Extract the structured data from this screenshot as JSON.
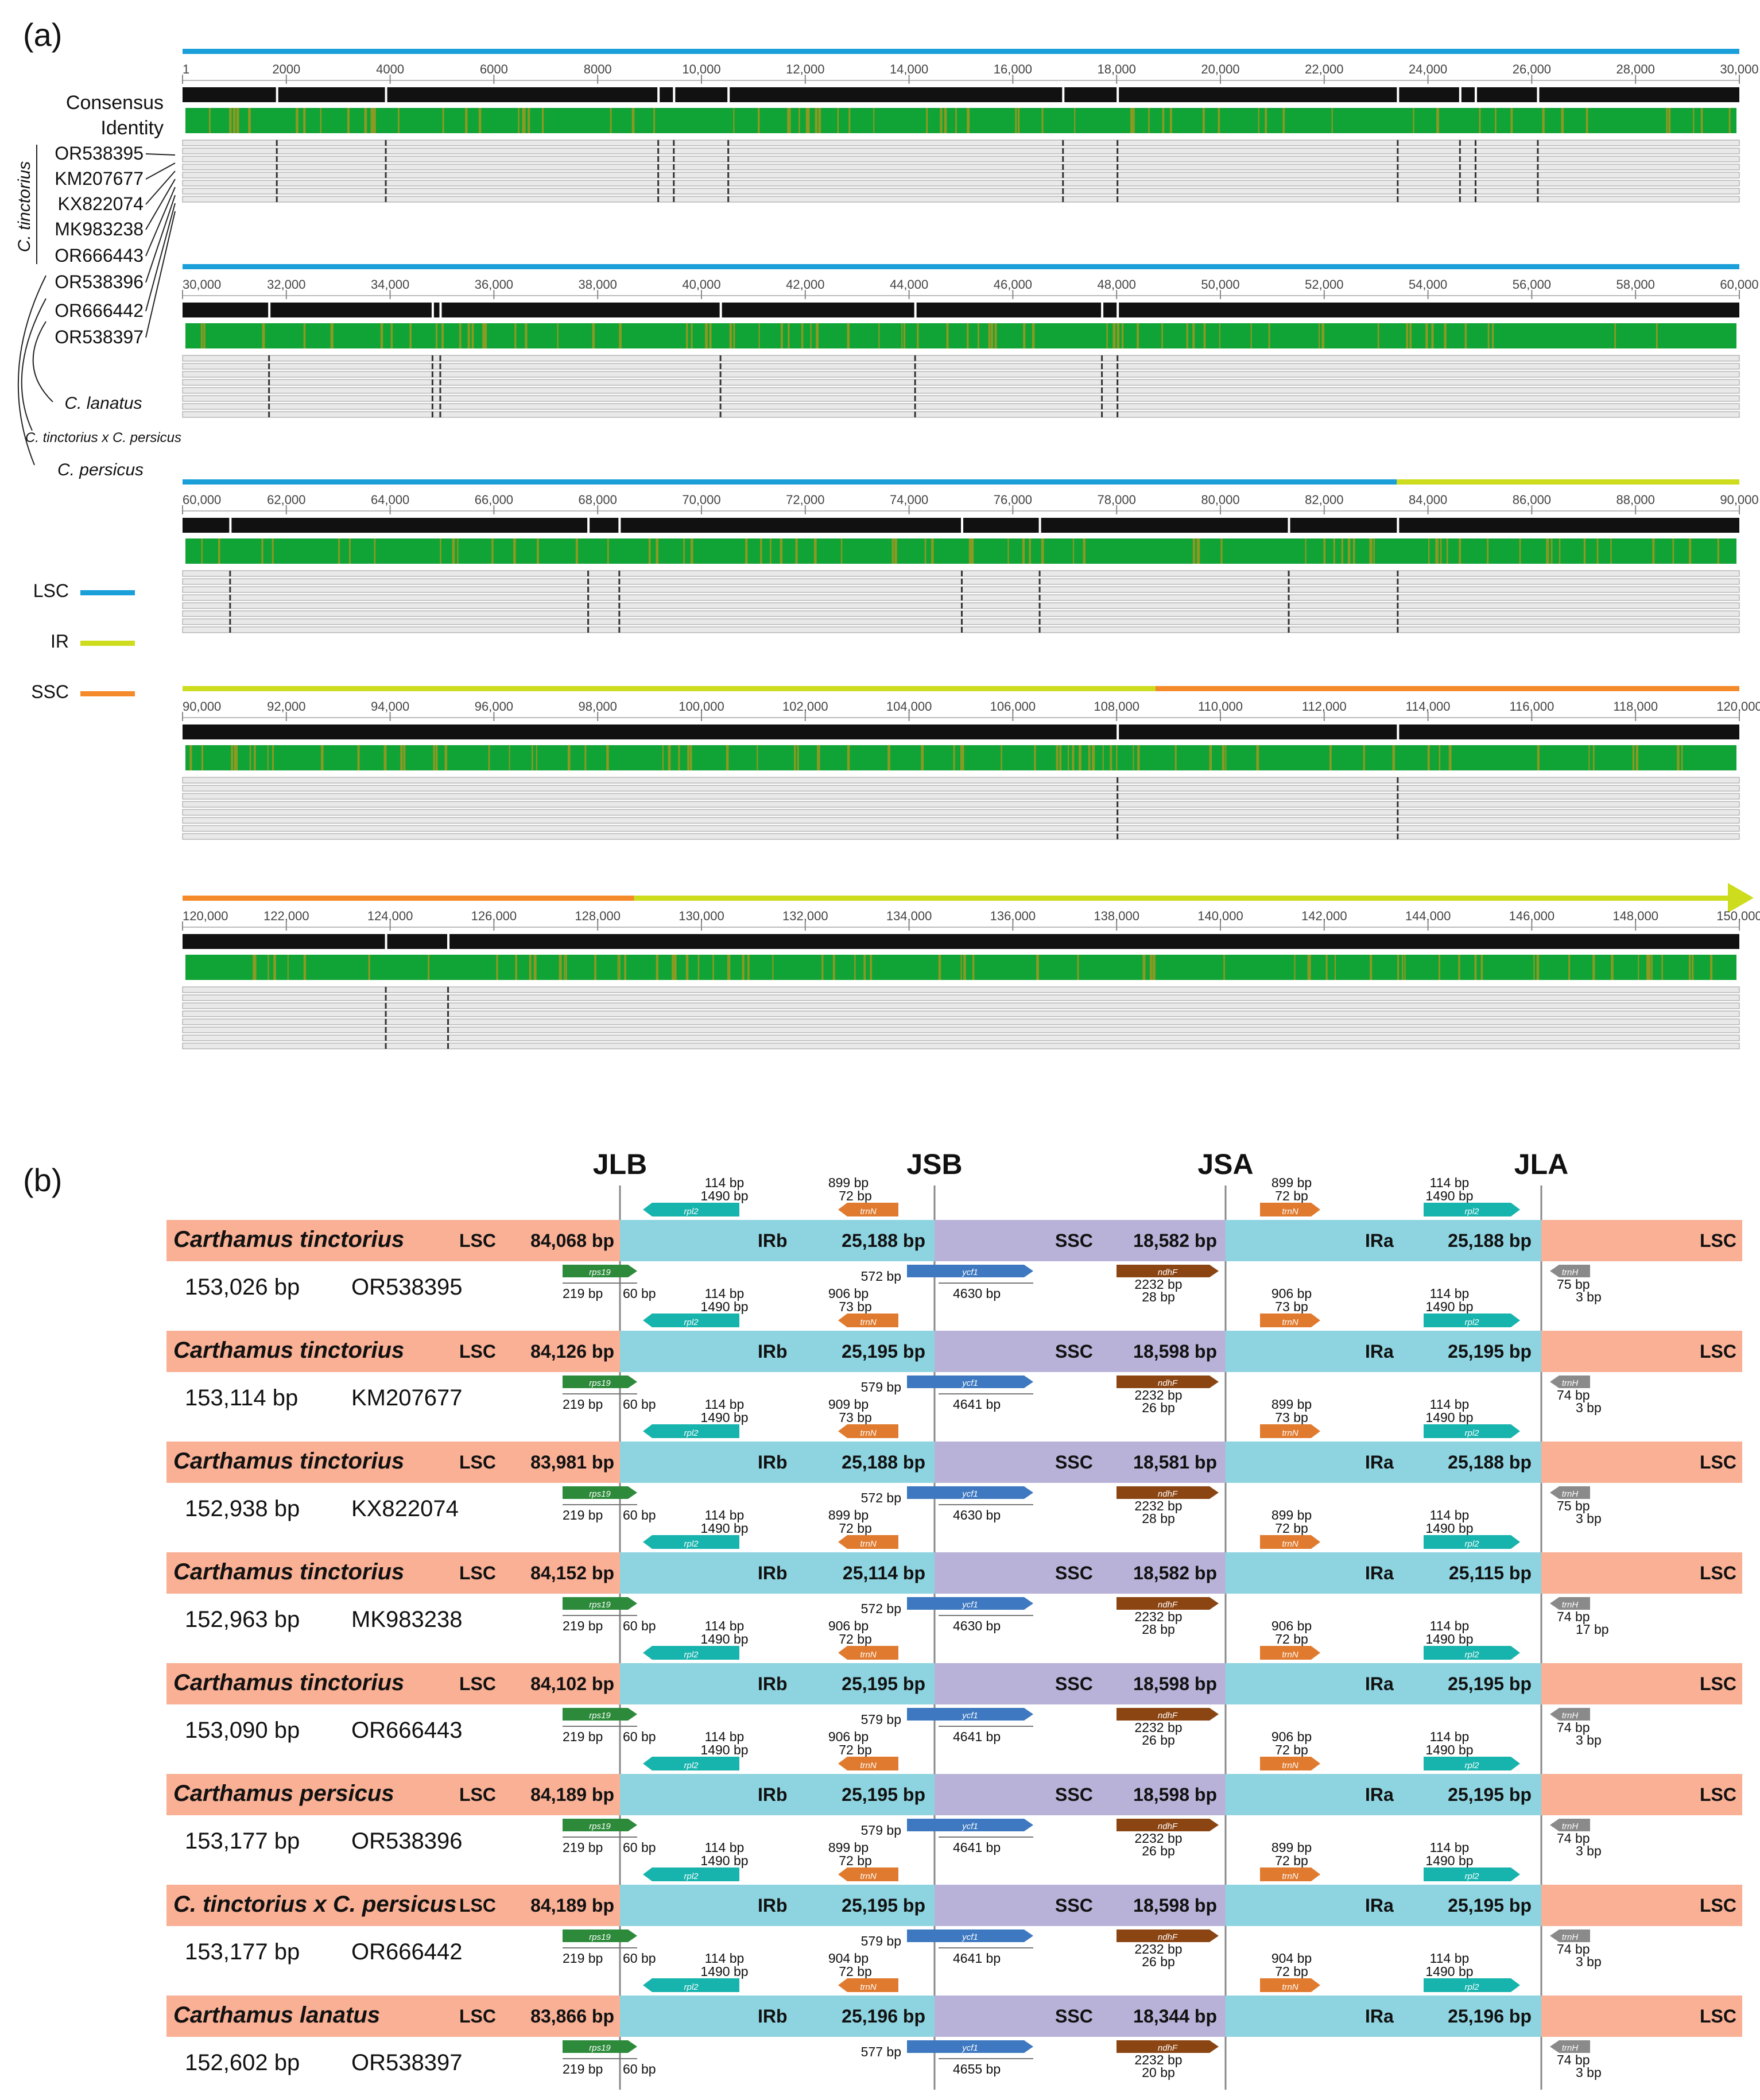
{
  "panel_a": {
    "label": "(a)",
    "consensus_label": "Consensus",
    "identity_label": "Identity",
    "seq_ids": [
      "OR538395",
      "KM207677",
      "KX822074",
      "MK983238",
      "OR666443",
      "OR538396",
      "OR666442",
      "OR538397"
    ],
    "group_labels": {
      "tinctorius": "C. tinctorius",
      "lanatus": "C. lanatus",
      "hybrid": "C. tinctorius x C. persicus",
      "persicus": "C. persicus"
    },
    "legend": [
      {
        "label": "LSC",
        "color": "#1a9fd9"
      },
      {
        "label": "IR",
        "color": "#cddc1c"
      },
      {
        "label": "SSC",
        "color": "#f58a2a"
      }
    ],
    "rows": [
      {
        "start": "1",
        "ticks": [
          "2000",
          "4000",
          "6000",
          "8000",
          "10,000",
          "12,000",
          "14,000",
          "16,000",
          "18,000",
          "20,000",
          "22,000",
          "24,000",
          "26,000",
          "28,000",
          "30,000"
        ]
      },
      {
        "start": "30,000",
        "ticks": [
          "32,000",
          "34,000",
          "36,000",
          "38,000",
          "40,000",
          "42,000",
          "44,000",
          "46,000",
          "48,000",
          "50,000",
          "52,000",
          "54,000",
          "56,000",
          "58,000",
          "60,000"
        ]
      },
      {
        "start": "60,000",
        "ticks": [
          "62,000",
          "64,000",
          "66,000",
          "68,000",
          "70,000",
          "72,000",
          "74,000",
          "76,000",
          "78,000",
          "80,000",
          "82,000",
          "84,000",
          "86,000",
          "88,000",
          "90,000"
        ]
      },
      {
        "start": "90,000",
        "ticks": [
          "92,000",
          "94,000",
          "96,000",
          "98,000",
          "100,000",
          "102,000",
          "104,000",
          "106,000",
          "108,000",
          "110,000",
          "112,000",
          "114,000",
          "116,000",
          "118,000",
          "120,000"
        ]
      },
      {
        "start": "120,000",
        "ticks": [
          "122,000",
          "124,000",
          "126,000",
          "128,000",
          "130,000",
          "132,000",
          "134,000",
          "136,000",
          "138,000",
          "140,000",
          "142,000",
          "144,000",
          "146,000",
          "148,000",
          "150,000"
        ]
      }
    ]
  },
  "panel_b": {
    "label": "(b)",
    "junctions": [
      "JLB",
      "JSB",
      "JSA",
      "JLA"
    ],
    "region_labels": {
      "lsc": "LSC",
      "irb": "IRb",
      "ssc": "SSC",
      "ira": "IRa"
    },
    "gene_names": {
      "rps19": "rps19",
      "rpl2": "rpl2",
      "trnN": "trnN",
      "ycf1": "ycf1",
      "ndhF": "ndhF",
      "trnH": "trnH"
    },
    "colors": {
      "lsc": "#f9b095",
      "ir": "#8dd4e0",
      "ssc": "#b9b2d8",
      "rps19": "#2c8a3a",
      "rpl2": "#17b3ad",
      "trnN": "#e07a2f",
      "ycf1": "#3d78c0",
      "ndhF": "#8b4513",
      "trnH": "#8a8a8a"
    },
    "genomes": [
      {
        "species": "Carthamus tinctorius",
        "total": "153,026 bp",
        "accession": "OR538395",
        "lsc": "84,068 bp",
        "irb": "25,188 bp",
        "ssc": "18,582 bp",
        "ira": "25,188 bp",
        "rps19_a": "219 bp",
        "rps19_b": "60 bp",
        "rpl2_a": "114 bp",
        "rpl2_b": "1490 bp",
        "trnN_b_a": "899 bp",
        "trnN_b_b": "72 bp",
        "ycf1_a": "572 bp",
        "ycf1_b": "4630 bp",
        "ndhF_a": "2232 bp",
        "ndhF_b": "28 bp",
        "trnN_a_a": "899 bp",
        "trnN_a_b": "72 bp",
        "rpl2a_a": "114 bp",
        "rpl2a_b": "1490 bp",
        "trnH_a": "75 bp",
        "trnH_b": "3 bp"
      },
      {
        "species": "Carthamus tinctorius",
        "total": "153,114 bp",
        "accession": "KM207677",
        "lsc": "84,126 bp",
        "irb": "25,195 bp",
        "ssc": "18,598 bp",
        "ira": "25,195 bp",
        "rps19_a": "219 bp",
        "rps19_b": "60 bp",
        "rpl2_a": "114 bp",
        "rpl2_b": "1490 bp",
        "trnN_b_a": "906 bp",
        "trnN_b_b": "73 bp",
        "ycf1_a": "579 bp",
        "ycf1_b": "4641 bp",
        "ndhF_a": "2232 bp",
        "ndhF_b": "26 bp",
        "trnN_a_a": "906 bp",
        "trnN_a_b": "73 bp",
        "rpl2a_a": "114 bp",
        "rpl2a_b": "1490 bp",
        "trnH_a": "74 bp",
        "trnH_b": "3 bp"
      },
      {
        "species": "Carthamus tinctorius",
        "total": "152,938 bp",
        "accession": "KX822074",
        "lsc": "83,981 bp",
        "irb": "25,188 bp",
        "ssc": "18,581 bp",
        "ira": "25,188 bp",
        "rps19_a": "219 bp",
        "rps19_b": "60 bp",
        "rpl2_a": "114 bp",
        "rpl2_b": "1490 bp",
        "trnN_b_a": "909 bp",
        "trnN_b_b": "73 bp",
        "ycf1_a": "572 bp",
        "ycf1_b": "4630 bp",
        "ndhF_a": "2232 bp",
        "ndhF_b": "28 bp",
        "trnN_a_a": "899 bp",
        "trnN_a_b": "73 bp",
        "rpl2a_a": "114 bp",
        "rpl2a_b": "1490 bp",
        "trnH_a": "75 bp",
        "trnH_b": "3 bp"
      },
      {
        "species": "Carthamus tinctorius",
        "total": "152,963 bp",
        "accession": "MK983238",
        "lsc": "84,152 bp",
        "irb": "25,114 bp",
        "ssc": "18,582 bp",
        "ira": "25,115 bp",
        "rps19_a": "219 bp",
        "rps19_b": "60 bp",
        "rpl2_a": "114 bp",
        "rpl2_b": "1490 bp",
        "trnN_b_a": "899 bp",
        "trnN_b_b": "72 bp",
        "ycf1_a": "572 bp",
        "ycf1_b": "4630 bp",
        "ndhF_a": "2232 bp",
        "ndhF_b": "28 bp",
        "trnN_a_a": "899 bp",
        "trnN_a_b": "72 bp",
        "rpl2a_a": "114 bp",
        "rpl2a_b": "1490 bp",
        "trnH_a": "74 bp",
        "trnH_b": "17 bp"
      },
      {
        "species": "Carthamus tinctorius",
        "total": "153,090 bp",
        "accession": "OR666443",
        "lsc": "84,102 bp",
        "irb": "25,195 bp",
        "ssc": "18,598 bp",
        "ira": "25,195 bp",
        "rps19_a": "219 bp",
        "rps19_b": "60 bp",
        "rpl2_a": "114 bp",
        "rpl2_b": "1490 bp",
        "trnN_b_a": "906 bp",
        "trnN_b_b": "72 bp",
        "ycf1_a": "579 bp",
        "ycf1_b": "4641 bp",
        "ndhF_a": "2232 bp",
        "ndhF_b": "26 bp",
        "trnN_a_a": "906 bp",
        "trnN_a_b": "72 bp",
        "rpl2a_a": "114 bp",
        "rpl2a_b": "1490 bp",
        "trnH_a": "74 bp",
        "trnH_b": "3 bp"
      },
      {
        "species": "Carthamus persicus",
        "total": "153,177 bp",
        "accession": "OR538396",
        "lsc": "84,189 bp",
        "irb": "25,195 bp",
        "ssc": "18,598 bp",
        "ira": "25,195 bp",
        "rps19_a": "219 bp",
        "rps19_b": "60 bp",
        "rpl2_a": "114 bp",
        "rpl2_b": "1490 bp",
        "trnN_b_a": "906 bp",
        "trnN_b_b": "72 bp",
        "ycf1_a": "579 bp",
        "ycf1_b": "4641 bp",
        "ndhF_a": "2232 bp",
        "ndhF_b": "26 bp",
        "trnN_a_a": "906 bp",
        "trnN_a_b": "72 bp",
        "rpl2a_a": "114 bp",
        "rpl2a_b": "1490 bp",
        "trnH_a": "74 bp",
        "trnH_b": "3 bp"
      },
      {
        "species": "C. tinctorius x C. persicus",
        "total": "153,177 bp",
        "accession": "OR666442",
        "lsc": "84,189 bp",
        "irb": "25,195 bp",
        "ssc": "18,598 bp",
        "ira": "25,195 bp",
        "rps19_a": "219 bp",
        "rps19_b": "60 bp",
        "rpl2_a": "114 bp",
        "rpl2_b": "1490 bp",
        "trnN_b_a": "899 bp",
        "trnN_b_b": "72 bp",
        "ycf1_a": "579 bp",
        "ycf1_b": "4641 bp",
        "ndhF_a": "2232 bp",
        "ndhF_b": "26 bp",
        "trnN_a_a": "899 bp",
        "trnN_a_b": "72 bp",
        "rpl2a_a": "114 bp",
        "rpl2a_b": "1490 bp",
        "trnH_a": "74 bp",
        "trnH_b": "3 bp"
      },
      {
        "species": "Carthamus lanatus",
        "total": "152,602 bp",
        "accession": "OR538397",
        "lsc": "83,866 bp",
        "irb": "25,196 bp",
        "ssc": "18,344 bp",
        "ira": "25,196 bp",
        "rps19_a": "219 bp",
        "rps19_b": "60 bp",
        "rpl2_a": "114 bp",
        "rpl2_b": "1490 bp",
        "trnN_b_a": "904 bp",
        "trnN_b_b": "72 bp",
        "ycf1_a": "577 bp",
        "ycf1_b": "4655 bp",
        "ndhF_a": "2232 bp",
        "ndhF_b": "20 bp",
        "trnN_a_a": "904 bp",
        "trnN_a_b": "72 bp",
        "rpl2a_a": "114 bp",
        "rpl2a_b": "1490 bp",
        "trnH_a": "74 bp",
        "trnH_b": "3 bp"
      }
    ]
  }
}
